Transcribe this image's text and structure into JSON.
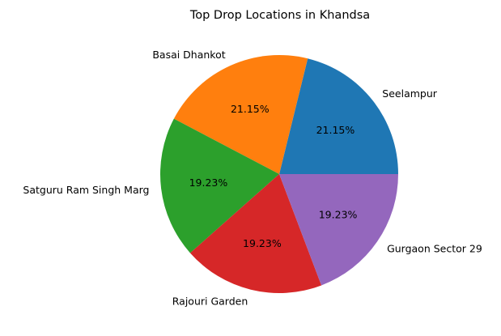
{
  "chart_data": {
    "type": "pie",
    "title": "Top Drop Locations in Khandsa",
    "labels": [
      "Seelampur",
      "Basai Dhankot",
      "Satguru Ram Singh Marg",
      "Rajouri Garden",
      "Gurgaon Sector 29"
    ],
    "values": [
      21.15,
      21.15,
      19.23,
      19.23,
      19.23
    ],
    "percent_labels": [
      "21.15%",
      "21.15%",
      "19.23%",
      "19.23%",
      "19.23%"
    ],
    "colors": [
      "#1f77b4",
      "#ff7f0e",
      "#2ca02c",
      "#d62728",
      "#9467bd"
    ],
    "start_angle_deg": 0,
    "direction": "counterclockwise",
    "legend": "none"
  }
}
